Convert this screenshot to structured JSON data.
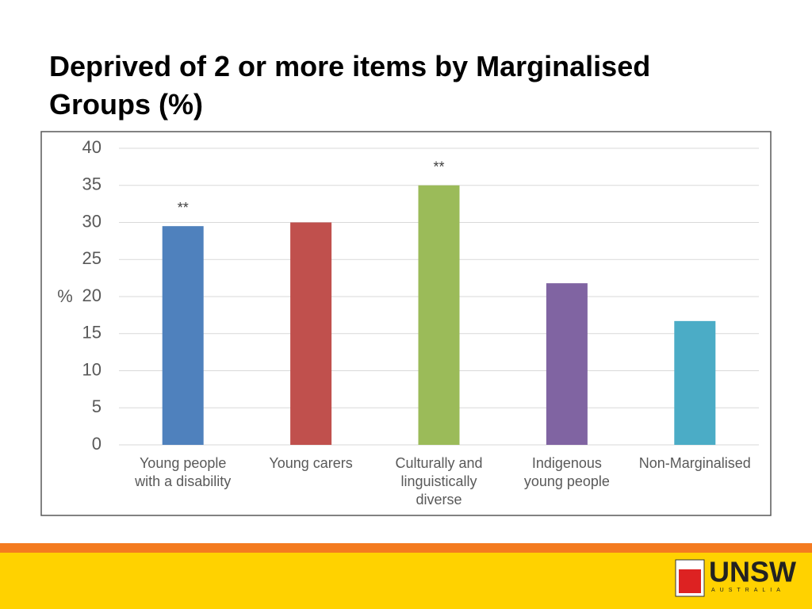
{
  "chart_data": {
    "type": "bar",
    "title": "Deprived of 2 or more items by Marginalised Groups (%)",
    "ylabel": "%",
    "categories": [
      "Young people\nwith a disability",
      "Young carers",
      "Culturally and\nlinguistically\ndiverse",
      "Indigenous\nyoung people",
      "Non-Marginalised"
    ],
    "values": [
      29.5,
      30,
      35,
      21.8,
      16.7
    ],
    "colors": [
      "#4f81bd",
      "#c0504d",
      "#9bbb59",
      "#8064a2",
      "#4bacc6"
    ],
    "annotations": [
      {
        "text": "**",
        "category": "Young people\nwith a disability"
      },
      {
        "text": "**",
        "category": "Culturally and\nlinguistically\ndiverse"
      }
    ],
    "ylim": [
      0,
      40
    ],
    "yticks": [
      0,
      5,
      10,
      15,
      20,
      25,
      30,
      35,
      40
    ],
    "grid": true
  },
  "footer": {
    "logo": "UNSW",
    "logo_subtitle": "AUSTRALIA"
  }
}
